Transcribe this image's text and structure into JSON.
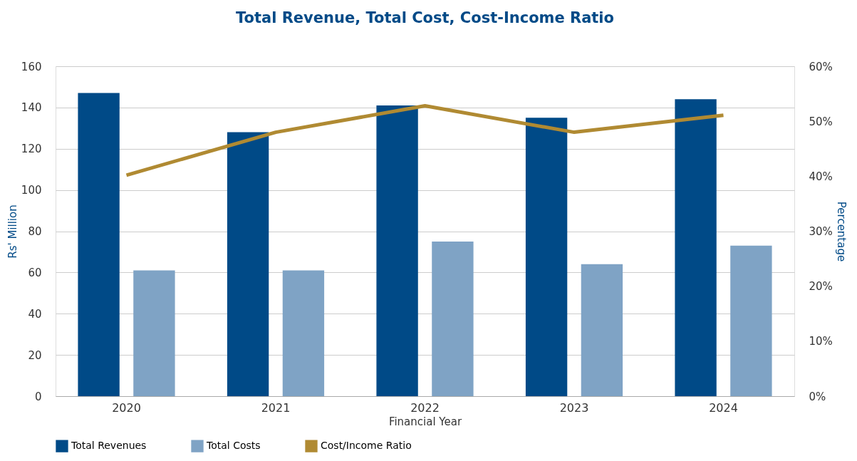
{
  "chart_data": {
    "type": "bar",
    "title": "Total Revenue, Total Cost, Cost-Income Ratio",
    "xlabel": "Financial Year",
    "ylabel": "Rs' Million",
    "y2label": "Percentage",
    "categories": [
      "2020",
      "2021",
      "2022",
      "2023",
      "2024"
    ],
    "series": [
      {
        "name": "Total Revenues",
        "color": "#004a87",
        "values": [
          147,
          128,
          141,
          135,
          144
        ]
      },
      {
        "name": "Total Costs",
        "color": "#7fa3c5",
        "values": [
          61,
          61,
          75,
          64,
          73
        ]
      },
      {
        "name": "Cost/Income Ratio",
        "type": "line",
        "axis": "y2",
        "color": "#b08a32",
        "values": [
          40.2,
          48.0,
          52.8,
          48.0,
          51.1
        ]
      }
    ],
    "ylim": [
      0,
      160
    ],
    "yticks": [
      0,
      20,
      40,
      60,
      80,
      100,
      120,
      140,
      160
    ],
    "y2lim": [
      0,
      60
    ],
    "y2ticks": [
      {
        "value": 0,
        "label": "0%"
      },
      {
        "value": 10,
        "label": "10%"
      },
      {
        "value": 20,
        "label": "20%"
      },
      {
        "value": 30,
        "label": "30%"
      },
      {
        "value": 40,
        "label": "40%"
      },
      {
        "value": 50,
        "label": "50%"
      },
      {
        "value": 60,
        "label": "60%"
      }
    ],
    "grid": "y",
    "legend": "bottom",
    "marker": "none",
    "line_style": "solid"
  }
}
